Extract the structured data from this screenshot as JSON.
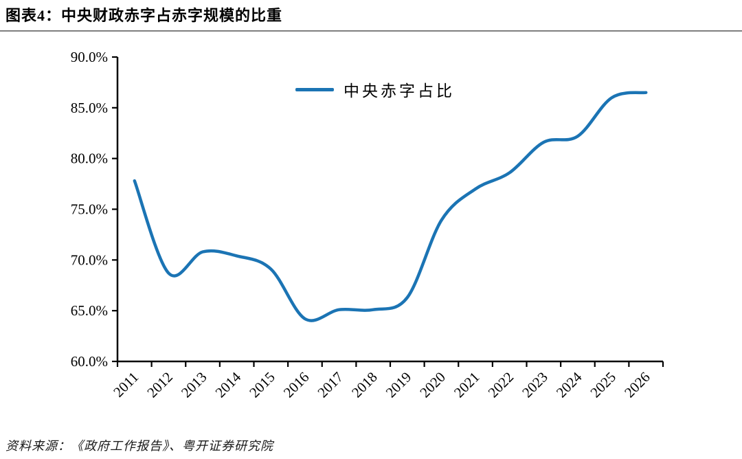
{
  "header": {
    "title": "图表4：中央财政赤字占赤字规模的比重"
  },
  "footer": {
    "source": "资料来源：《政府工作报告》、粤开证券研究院"
  },
  "chart_data": {
    "type": "line",
    "title": "图表4：中央财政赤字占赤字规模的比重",
    "xlabel": "",
    "ylabel": "",
    "categories": [
      "2011",
      "2012",
      "2013",
      "2014",
      "2015",
      "2016",
      "2017",
      "2018",
      "2019",
      "2020",
      "2021",
      "2022",
      "2023",
      "2024",
      "2025",
      "2026"
    ],
    "series": [
      {
        "name": "中央赤字占比",
        "color": "#1b74b4",
        "values": [
          77.8,
          68.7,
          70.8,
          70.4,
          69.1,
          64.2,
          65.1,
          65.1,
          66.3,
          73.9,
          77.0,
          78.6,
          81.6,
          82.2,
          86.0,
          86.5
        ]
      }
    ],
    "ylim": [
      60,
      90
    ],
    "ytick_step": 5,
    "ytick_decimals": 1,
    "ytick_suffix": "%",
    "grid": false,
    "smooth": true,
    "legend_position": "top-center",
    "axis_color": "#000000",
    "background_color": "#ffffff"
  }
}
